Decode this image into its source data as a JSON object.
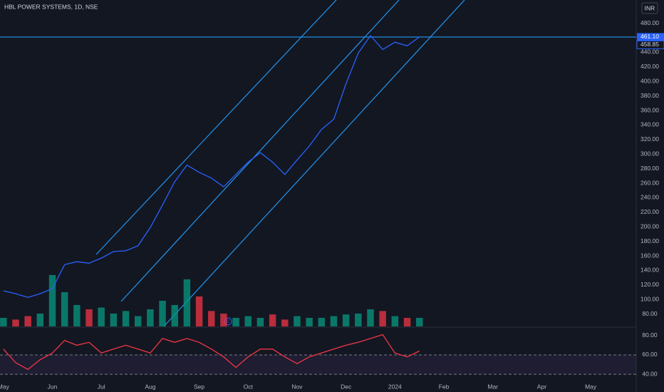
{
  "chart_data": [
    {
      "type": "line",
      "title": "HBL POWER SYSTEMS, 1D, NSE",
      "currency": "INR",
      "event_marker": "D",
      "color": "#2962ff",
      "x": [
        0,
        0.25,
        0.5,
        0.75,
        1,
        1.25,
        1.5,
        1.75,
        2,
        2.25,
        2.5,
        2.75,
        3,
        3.25,
        3.5,
        3.75,
        4,
        4.25,
        4.5,
        4.75,
        5,
        5.25,
        5.5,
        5.75,
        6,
        6.25,
        6.5,
        6.75,
        7,
        7.25,
        7.5,
        7.75,
        8,
        8.25,
        8.5
      ],
      "values": [
        112,
        108,
        103,
        108,
        115,
        148,
        152,
        150,
        157,
        166,
        167,
        174,
        199,
        230,
        262,
        285,
        275,
        267,
        255,
        272,
        289,
        302,
        289,
        272,
        292,
        311,
        334,
        348,
        397,
        439,
        463,
        444,
        454,
        449,
        461.1
      ],
      "volume": {
        "values": [
          10,
          8,
          12,
          15,
          60,
          40,
          25,
          20,
          22,
          15,
          18,
          12,
          20,
          30,
          25,
          55,
          35,
          18,
          15,
          10,
          12,
          10,
          14,
          8,
          12,
          10,
          10,
          12,
          14,
          15,
          20,
          18,
          12,
          10,
          10
        ],
        "ylim": [
          0,
          381
        ],
        "up_color": "#089981",
        "down_color": "#f23645"
      },
      "hline": {
        "value": 461.1,
        "label": "461.10"
      },
      "ma_last": 458.85,
      "xlim": [
        -0.07,
        12.93
      ],
      "xticks": [
        {
          "value": 0,
          "label": "May"
        },
        {
          "value": 1,
          "label": "Jun"
        },
        {
          "value": 2,
          "label": "Jul"
        },
        {
          "value": 3,
          "label": "Aug"
        },
        {
          "value": 4,
          "label": "Sep"
        },
        {
          "value": 5,
          "label": "Oct"
        },
        {
          "value": 6,
          "label": "Nov"
        },
        {
          "value": 7,
          "label": "Dec"
        },
        {
          "value": 8,
          "label": "2024"
        },
        {
          "value": 9,
          "label": "Feb"
        },
        {
          "value": 10,
          "label": "Mar"
        },
        {
          "value": 11,
          "label": "Apr"
        },
        {
          "value": 12,
          "label": "May"
        }
      ],
      "ylim": [
        63,
        512
      ],
      "yticks": [
        {
          "value": 80,
          "label": "80.00"
        },
        {
          "value": 100,
          "label": "100.00"
        },
        {
          "value": 120,
          "label": "120.00"
        },
        {
          "value": 140,
          "label": "140.00"
        },
        {
          "value": 160,
          "label": "160.00"
        },
        {
          "value": 180,
          "label": "180.00"
        },
        {
          "value": 200,
          "label": "200.00"
        },
        {
          "value": 220,
          "label": "220.00"
        },
        {
          "value": 240,
          "label": "240.00"
        },
        {
          "value": 260,
          "label": "260.00"
        },
        {
          "value": 280,
          "label": "280.00"
        },
        {
          "value": 300,
          "label": "300.00"
        },
        {
          "value": 320,
          "label": "320.00"
        },
        {
          "value": 340,
          "label": "340.00"
        },
        {
          "value": 360,
          "label": "360.00"
        },
        {
          "value": 380,
          "label": "380.00"
        },
        {
          "value": 400,
          "label": "400.00"
        },
        {
          "value": 420,
          "label": "420.00"
        },
        {
          "value": 440,
          "label": "440.00"
        },
        {
          "value": 480,
          "label": "480.00"
        }
      ],
      "grid": false
    },
    {
      "type": "line",
      "color": "#f23645",
      "x": [
        0,
        0.25,
        0.5,
        0.75,
        1,
        1.25,
        1.5,
        1.75,
        2,
        2.25,
        2.5,
        2.75,
        3,
        3.25,
        3.5,
        3.75,
        4,
        4.25,
        4.5,
        4.75,
        5,
        5.25,
        5.5,
        5.75,
        6,
        6.25,
        6.5,
        6.75,
        7,
        7.25,
        7.5,
        7.75,
        8,
        8.25,
        8.5
      ],
      "values": [
        66,
        52,
        45,
        55,
        62,
        75,
        70,
        73,
        62,
        66,
        70,
        66,
        62,
        77,
        73,
        77,
        73,
        66,
        58,
        47,
        58,
        66,
        66,
        58,
        51,
        58,
        62,
        66,
        70,
        73,
        77,
        81,
        62,
        58,
        64
      ],
      "band": [
        40,
        60
      ],
      "band_color": "#7e57c2",
      "xlim": [
        -0.07,
        12.93
      ],
      "ylim": [
        29,
        88
      ],
      "yticks": [
        {
          "value": 40,
          "label": "40.00"
        },
        {
          "value": 60,
          "label": "60.00"
        },
        {
          "value": 80,
          "label": "80.00"
        }
      ],
      "grid": false
    }
  ]
}
